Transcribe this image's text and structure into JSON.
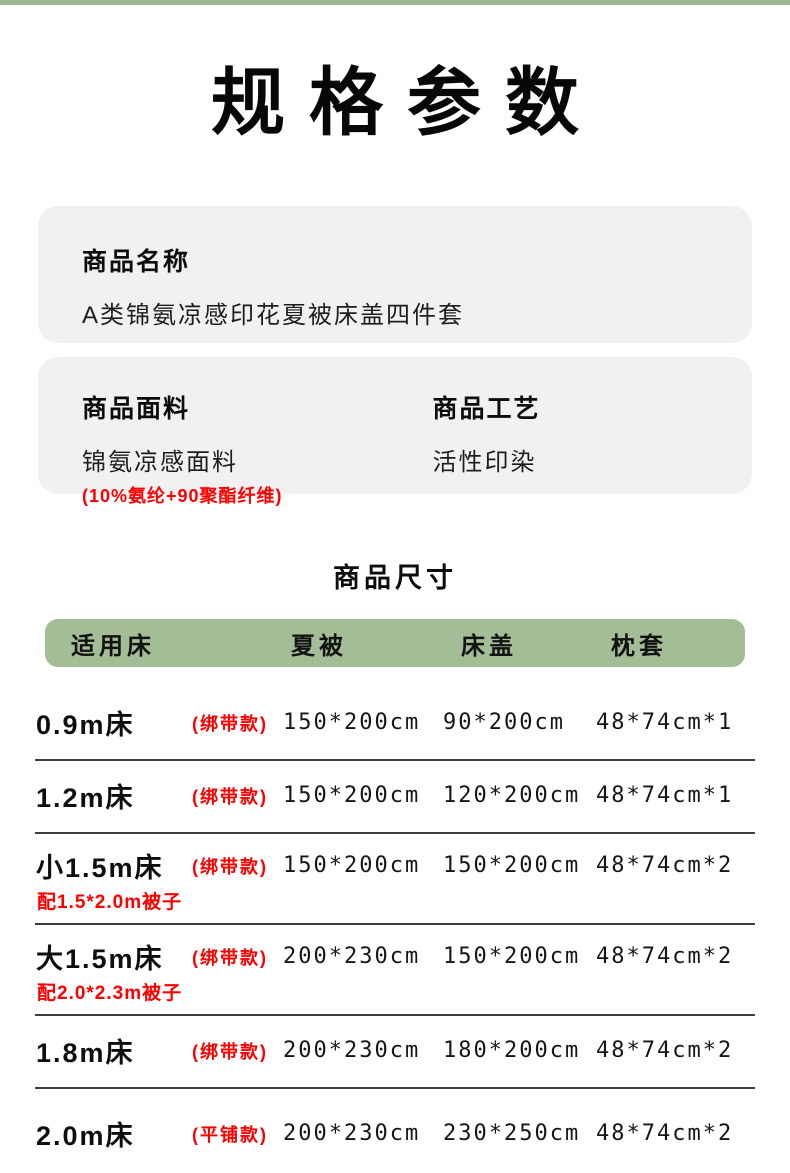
{
  "page": {
    "title": "规格参数"
  },
  "cards": {
    "name": {
      "label": "商品名称",
      "value": "A类锦氨凉感印花夏被床盖四件套"
    },
    "fabric": {
      "label": "商品面料",
      "value": "锦氨凉感面料",
      "note": "(10%氨纶+90聚酯纤维)"
    },
    "craft": {
      "label": "商品工艺",
      "value": "活性印染"
    }
  },
  "size": {
    "title": "商品尺寸",
    "columns": [
      "适用床",
      "夏被",
      "床盖",
      "枕套"
    ],
    "rows": [
      {
        "bed": "0.9m床",
        "style": "(绑带款)",
        "quilt": "150*200cm",
        "cover": "90*200cm",
        "pillow": "48*74cm*1",
        "note": ""
      },
      {
        "bed": "1.2m床",
        "style": "(绑带款)",
        "quilt": "150*200cm",
        "cover": "120*200cm",
        "pillow": "48*74cm*1",
        "note": ""
      },
      {
        "bed": "小1.5m床",
        "style": "(绑带款)",
        "quilt": "150*200cm",
        "cover": "150*200cm",
        "pillow": "48*74cm*2",
        "note": "配1.5*2.0m被子"
      },
      {
        "bed": "大1.5m床",
        "style": "(绑带款)",
        "quilt": "200*230cm",
        "cover": "150*200cm",
        "pillow": "48*74cm*2",
        "note": "配2.0*2.3m被子"
      },
      {
        "bed": "1.8m床",
        "style": "(绑带款)",
        "quilt": "200*230cm",
        "cover": "180*200cm",
        "pillow": "48*74cm*2",
        "note": ""
      },
      {
        "bed": "2.0m床",
        "style": "(平铺款)",
        "quilt": "200*230cm",
        "cover": "230*250cm",
        "pillow": "48*74cm*2",
        "note": ""
      }
    ]
  },
  "colors": {
    "accent_green": "#a3bd96",
    "top_strip_green": "#9bb690",
    "card_background": "#f1f1f2",
    "highlight_red": "#fe0000"
  }
}
